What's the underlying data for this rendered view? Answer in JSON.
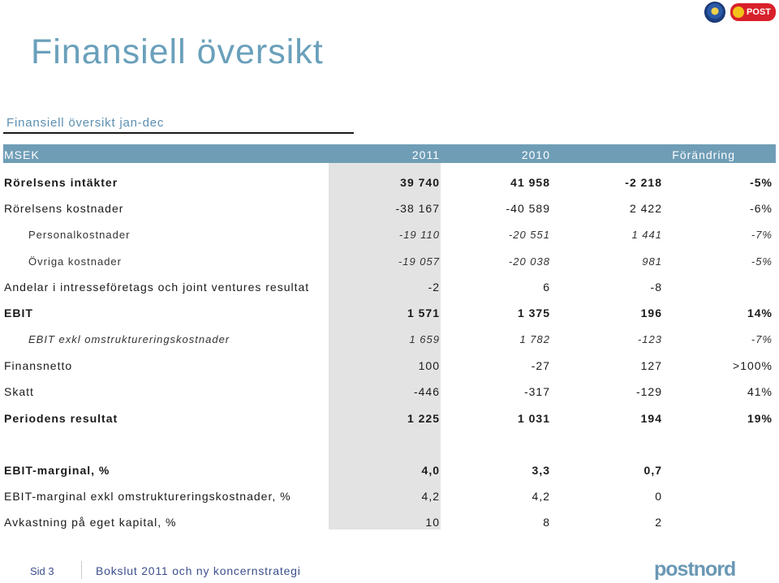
{
  "branding": {
    "seal_icon": "crown-seal-icon",
    "post_logo_text": "POST",
    "footer_logo_text": "postnord"
  },
  "slide": {
    "title": "Finansiell översikt",
    "subtitle": "Finansiell översikt jan-dec"
  },
  "table": {
    "header": {
      "label": "MSEK",
      "col1": "2011",
      "col2": "2010",
      "col3": "Förändring",
      "col4": ""
    },
    "rows": [
      {
        "label": "Rörelsens intäkter",
        "c1": "39 740",
        "c2": "41 958",
        "c3": "-2 218",
        "c4": "-5%"
      },
      {
        "label": "Rörelsens kostnader",
        "c1": "-38 167",
        "c2": "-40 589",
        "c3": "2 422",
        "c4": "-6%"
      },
      {
        "label": "Personalkostnader",
        "c1": "-19 110",
        "c2": "-20 551",
        "c3": "1 441",
        "c4": "-7%"
      },
      {
        "label": "Övriga kostnader",
        "c1": "-19 057",
        "c2": "-20 038",
        "c3": "981",
        "c4": "-5%"
      },
      {
        "label": "Andelar i intresseföretags och joint ventures resultat",
        "c1": "-2",
        "c2": "6",
        "c3": "-8",
        "c4": ""
      },
      {
        "label": "EBIT",
        "c1": "1 571",
        "c2": "1 375",
        "c3": "196",
        "c4": "14%"
      },
      {
        "label": "EBIT exkl omstruktureringskostnader",
        "c1": "1 659",
        "c2": "1 782",
        "c3": "-123",
        "c4": "-7%"
      },
      {
        "label": "Finansnetto",
        "c1": "100",
        "c2": "-27",
        "c3": "127",
        "c4": ">100%"
      },
      {
        "label": "Skatt",
        "c1": "-446",
        "c2": "-317",
        "c3": "-129",
        "c4": "41%"
      },
      {
        "label": "Periodens resultat",
        "c1": "1 225",
        "c2": "1 031",
        "c3": "194",
        "c4": "19%"
      },
      {
        "label": "EBIT-marginal, %",
        "c1": "4,0",
        "c2": "3,3",
        "c3": "0,7",
        "c4": ""
      },
      {
        "label": "EBIT-marginal exkl omstruktureringskostnader, %",
        "c1": "4,2",
        "c2": "4,2",
        "c3": "0",
        "c4": ""
      },
      {
        "label": "Avkastning på eget kapital, %",
        "c1": "10",
        "c2": "8",
        "c3": "2",
        "c4": ""
      }
    ]
  },
  "footer": {
    "page": "Sid 3",
    "text": "Bokslut 2011 och ny koncernstrategi"
  },
  "colors": {
    "accent": "#6f9db6",
    "title": "#6aa0bb",
    "highlight": "#e3e3e3"
  }
}
